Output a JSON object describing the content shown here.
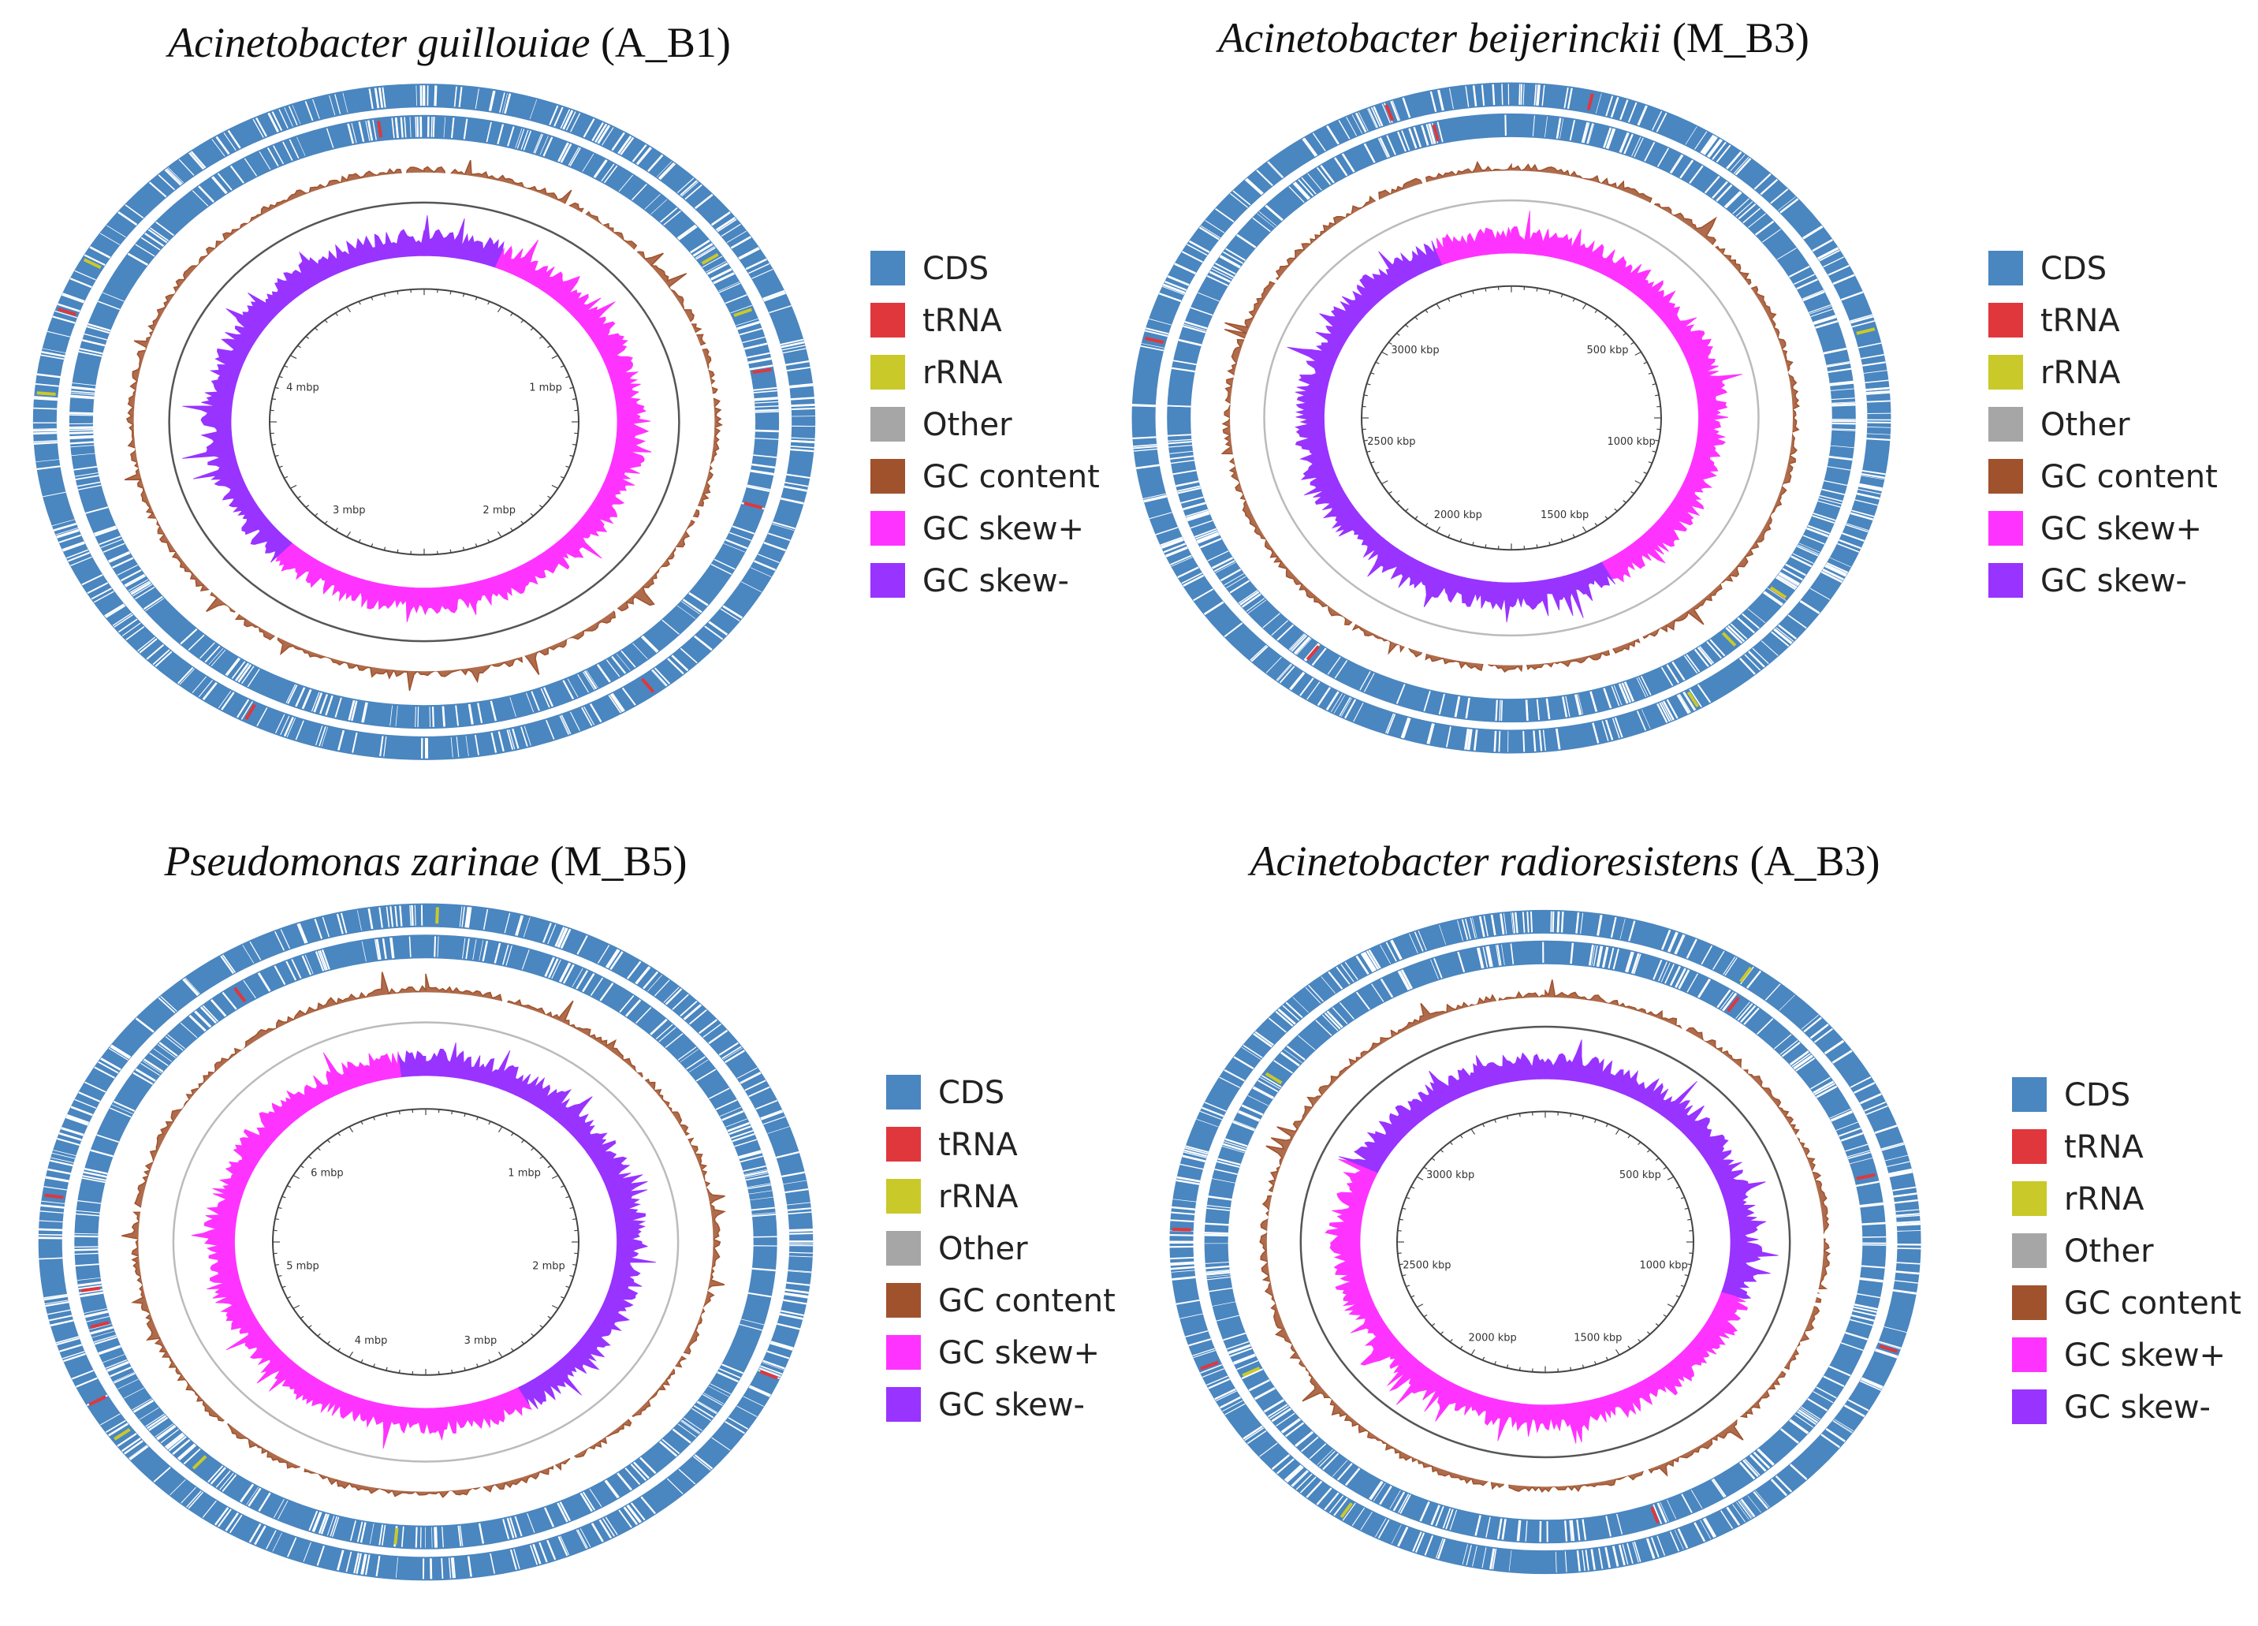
{
  "colors": {
    "cds": "#4a86c0",
    "trna": "#e0373c",
    "rrna": "#c9c92a",
    "other": "#a6a6a6",
    "gc_content": "#a0522d",
    "gc_skew_pos": "#ff33ff",
    "gc_skew_neg": "#9933ff",
    "ring_line": "#555555"
  },
  "legend": [
    {
      "key": "cds",
      "label": "CDS",
      "color": "#4a86c0"
    },
    {
      "key": "trna",
      "label": "tRNA",
      "color": "#e0373c"
    },
    {
      "key": "rrna",
      "label": "rRNA",
      "color": "#c9c92a"
    },
    {
      "key": "other",
      "label": "Other",
      "color": "#a6a6a6"
    },
    {
      "key": "gc_content",
      "label": "GC content",
      "color": "#a0522d"
    },
    {
      "key": "gc_skew_pos",
      "label": "GC skew+",
      "color": "#ff33ff"
    },
    {
      "key": "gc_skew_neg",
      "label": "GC skew-",
      "color": "#9933ff"
    }
  ],
  "panels": [
    {
      "id": "A_B1",
      "species": "Acinetobacter guillouiae",
      "strain": "(A_B1)",
      "ticks": [
        "1 mbp",
        "2 mbp",
        "3 mbp",
        "4 mbp"
      ],
      "skew_regions": [
        {
          "from": 0.0,
          "to": 0.06,
          "sign": "neg"
        },
        {
          "from": 0.06,
          "to": 0.62,
          "sign": "pos"
        },
        {
          "from": 0.62,
          "to": 1.0,
          "sign": "neg"
        }
      ]
    },
    {
      "id": "M_B3",
      "species": "Acinetobacter beijerinckii",
      "strain": "(M_B3)",
      "ticks": [
        "500 kbp",
        "1000 kbp",
        "1500 kbp",
        "2000 kbp",
        "2500 kbp",
        "3000 kbp"
      ],
      "skew_regions": [
        {
          "from": 0.0,
          "to": 0.42,
          "sign": "pos"
        },
        {
          "from": 0.42,
          "to": 0.94,
          "sign": "neg"
        },
        {
          "from": 0.94,
          "to": 1.0,
          "sign": "pos"
        }
      ]
    },
    {
      "id": "M_B5",
      "species": "Pseudomonas zarinae",
      "strain": "(M_B5)",
      "ticks": [
        "1 mbp",
        "2 mbp",
        "3 mbp",
        "4 mbp",
        "5 mbp",
        "6 mbp"
      ],
      "skew_regions": [
        {
          "from": 0.0,
          "to": 0.42,
          "sign": "neg"
        },
        {
          "from": 0.42,
          "to": 0.98,
          "sign": "pos"
        },
        {
          "from": 0.98,
          "to": 1.0,
          "sign": "neg"
        }
      ]
    },
    {
      "id": "A_B3",
      "species": "Acinetobacter radioresistens",
      "strain": "(A_B3)",
      "ticks": [
        "500 kbp",
        "1000 kbp",
        "1500 kbp",
        "2000 kbp",
        "2500 kbp",
        "3000 kbp"
      ],
      "skew_regions": [
        {
          "from": 0.0,
          "to": 0.3,
          "sign": "neg"
        },
        {
          "from": 0.3,
          "to": 0.82,
          "sign": "pos"
        },
        {
          "from": 0.82,
          "to": 1.0,
          "sign": "neg"
        }
      ]
    }
  ]
}
